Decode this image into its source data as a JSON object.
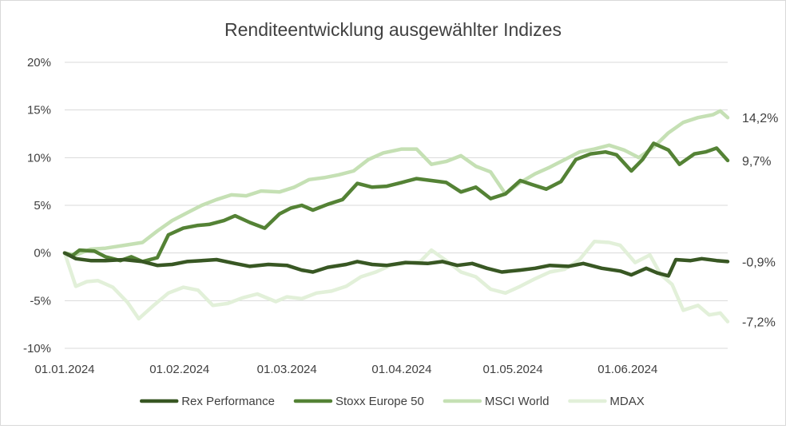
{
  "chart_data": {
    "type": "line",
    "title": "Renditeentwicklung ausgewählter Indizes",
    "xlabel": "",
    "ylabel": "",
    "x_range": [
      "2024-01-01",
      "2024-06-28"
    ],
    "x_tick_labels": [
      {
        "date": "2024-01-01",
        "label": "01.01.2024"
      },
      {
        "date": "2024-02-01",
        "label": "01.02.2024"
      },
      {
        "date": "2024-03-01",
        "label": "01.03.2024"
      },
      {
        "date": "2024-04-01",
        "label": "01.04.2024"
      },
      {
        "date": "2024-05-01",
        "label": "01.05.2024"
      },
      {
        "date": "2024-06-01",
        "label": "01.06.2024"
      }
    ],
    "y_ticks": [
      -10,
      -5,
      0,
      5,
      10,
      15,
      20
    ],
    "y_tick_labels": [
      "-10%",
      "-5%",
      "0%",
      "5%",
      "10%",
      "15%",
      "20%"
    ],
    "ylim": [
      -10,
      20
    ],
    "grid": "horizontal",
    "legend_position": "bottom",
    "series": [
      {
        "name": "Rex Performance",
        "color": "#385723",
        "end_label": "-0,9%",
        "points": [
          [
            "2024-01-01",
            0
          ],
          [
            "2024-01-04",
            -0.6
          ],
          [
            "2024-01-08",
            -0.8
          ],
          [
            "2024-01-12",
            -0.8
          ],
          [
            "2024-01-17",
            -0.7
          ],
          [
            "2024-01-22",
            -0.9
          ],
          [
            "2024-01-26",
            -1.3
          ],
          [
            "2024-01-30",
            -1.2
          ],
          [
            "2024-02-03",
            -0.9
          ],
          [
            "2024-02-07",
            -0.8
          ],
          [
            "2024-02-11",
            -0.7
          ],
          [
            "2024-02-16",
            -1.1
          ],
          [
            "2024-02-20",
            -1.4
          ],
          [
            "2024-02-25",
            -1.2
          ],
          [
            "2024-03-01",
            -1.3
          ],
          [
            "2024-03-05",
            -1.8
          ],
          [
            "2024-03-08",
            -2.0
          ],
          [
            "2024-03-12",
            -1.5
          ],
          [
            "2024-03-17",
            -1.2
          ],
          [
            "2024-03-20",
            -0.9
          ],
          [
            "2024-03-24",
            -1.2
          ],
          [
            "2024-03-28",
            -1.3
          ],
          [
            "2024-04-02",
            -1.0
          ],
          [
            "2024-04-08",
            -1.1
          ],
          [
            "2024-04-12",
            -0.9
          ],
          [
            "2024-04-16",
            -1.3
          ],
          [
            "2024-04-20",
            -1.1
          ],
          [
            "2024-04-24",
            -1.6
          ],
          [
            "2024-04-28",
            -2.0
          ],
          [
            "2024-05-03",
            -1.8
          ],
          [
            "2024-05-07",
            -1.6
          ],
          [
            "2024-05-11",
            -1.3
          ],
          [
            "2024-05-16",
            -1.4
          ],
          [
            "2024-05-20",
            -1.1
          ],
          [
            "2024-05-25",
            -1.6
          ],
          [
            "2024-05-30",
            -1.9
          ],
          [
            "2024-06-02",
            -2.3
          ],
          [
            "2024-06-06",
            -1.6
          ],
          [
            "2024-06-09",
            -2.1
          ],
          [
            "2024-06-12",
            -2.4
          ],
          [
            "2024-06-14",
            -0.7
          ],
          [
            "2024-06-18",
            -0.8
          ],
          [
            "2024-06-21",
            -0.6
          ],
          [
            "2024-06-25",
            -0.8
          ],
          [
            "2024-06-28",
            -0.9
          ]
        ]
      },
      {
        "name": "Stoxx Europe 50",
        "color": "#548235",
        "end_label": "9,7%",
        "points": [
          [
            "2024-01-01",
            0
          ],
          [
            "2024-01-03",
            -0.3
          ],
          [
            "2024-01-05",
            0.3
          ],
          [
            "2024-01-09",
            0.2
          ],
          [
            "2024-01-12",
            -0.4
          ],
          [
            "2024-01-16",
            -0.8
          ],
          [
            "2024-01-19",
            -0.4
          ],
          [
            "2024-01-22",
            -0.9
          ],
          [
            "2024-01-26",
            -0.5
          ],
          [
            "2024-01-29",
            1.9
          ],
          [
            "2024-02-02",
            2.6
          ],
          [
            "2024-02-06",
            2.9
          ],
          [
            "2024-02-09",
            3.0
          ],
          [
            "2024-02-13",
            3.4
          ],
          [
            "2024-02-16",
            3.9
          ],
          [
            "2024-02-20",
            3.2
          ],
          [
            "2024-02-24",
            2.6
          ],
          [
            "2024-02-28",
            4.1
          ],
          [
            "2024-03-02",
            4.7
          ],
          [
            "2024-03-05",
            5.0
          ],
          [
            "2024-03-08",
            4.5
          ],
          [
            "2024-03-12",
            5.1
          ],
          [
            "2024-03-16",
            5.6
          ],
          [
            "2024-03-20",
            7.3
          ],
          [
            "2024-03-24",
            6.9
          ],
          [
            "2024-03-28",
            7.0
          ],
          [
            "2024-04-01",
            7.4
          ],
          [
            "2024-04-05",
            7.8
          ],
          [
            "2024-04-09",
            7.6
          ],
          [
            "2024-04-13",
            7.4
          ],
          [
            "2024-04-17",
            6.4
          ],
          [
            "2024-04-21",
            6.9
          ],
          [
            "2024-04-25",
            5.7
          ],
          [
            "2024-04-29",
            6.2
          ],
          [
            "2024-05-03",
            7.6
          ],
          [
            "2024-05-06",
            7.2
          ],
          [
            "2024-05-10",
            6.7
          ],
          [
            "2024-05-14",
            7.5
          ],
          [
            "2024-05-18",
            9.8
          ],
          [
            "2024-05-22",
            10.4
          ],
          [
            "2024-05-26",
            10.6
          ],
          [
            "2024-05-29",
            10.3
          ],
          [
            "2024-06-02",
            8.6
          ],
          [
            "2024-06-05",
            9.8
          ],
          [
            "2024-06-08",
            11.5
          ],
          [
            "2024-06-12",
            10.8
          ],
          [
            "2024-06-15",
            9.3
          ],
          [
            "2024-06-19",
            10.4
          ],
          [
            "2024-06-22",
            10.6
          ],
          [
            "2024-06-25",
            11.0
          ],
          [
            "2024-06-28",
            9.7
          ]
        ]
      },
      {
        "name": "MSCI World",
        "color": "#c5e0b4",
        "end_label": "14,2%",
        "points": [
          [
            "2024-01-01",
            0
          ],
          [
            "2024-01-04",
            -0.2
          ],
          [
            "2024-01-08",
            0.4
          ],
          [
            "2024-01-12",
            0.5
          ],
          [
            "2024-01-17",
            0.8
          ],
          [
            "2024-01-22",
            1.1
          ],
          [
            "2024-01-26",
            2.3
          ],
          [
            "2024-01-30",
            3.4
          ],
          [
            "2024-02-03",
            4.2
          ],
          [
            "2024-02-07",
            5.0
          ],
          [
            "2024-02-11",
            5.6
          ],
          [
            "2024-02-15",
            6.1
          ],
          [
            "2024-02-19",
            6.0
          ],
          [
            "2024-02-23",
            6.5
          ],
          [
            "2024-02-28",
            6.4
          ],
          [
            "2024-03-03",
            6.9
          ],
          [
            "2024-03-07",
            7.7
          ],
          [
            "2024-03-11",
            7.9
          ],
          [
            "2024-03-15",
            8.2
          ],
          [
            "2024-03-19",
            8.6
          ],
          [
            "2024-03-23",
            9.8
          ],
          [
            "2024-03-27",
            10.5
          ],
          [
            "2024-04-01",
            10.9
          ],
          [
            "2024-04-05",
            10.9
          ],
          [
            "2024-04-09",
            9.3
          ],
          [
            "2024-04-13",
            9.6
          ],
          [
            "2024-04-17",
            10.2
          ],
          [
            "2024-04-21",
            9.1
          ],
          [
            "2024-04-25",
            8.5
          ],
          [
            "2024-04-29",
            6.2
          ],
          [
            "2024-05-03",
            7.4
          ],
          [
            "2024-05-07",
            8.3
          ],
          [
            "2024-05-11",
            9.0
          ],
          [
            "2024-05-15",
            9.8
          ],
          [
            "2024-05-19",
            10.6
          ],
          [
            "2024-05-23",
            10.9
          ],
          [
            "2024-05-27",
            11.3
          ],
          [
            "2024-05-31",
            10.8
          ],
          [
            "2024-06-04",
            10.0
          ],
          [
            "2024-06-08",
            11.1
          ],
          [
            "2024-06-12",
            12.6
          ],
          [
            "2024-06-16",
            13.7
          ],
          [
            "2024-06-20",
            14.2
          ],
          [
            "2024-06-24",
            14.5
          ],
          [
            "2024-06-26",
            14.9
          ],
          [
            "2024-06-28",
            14.2
          ]
        ]
      },
      {
        "name": "MDAX",
        "color": "#e2f0d9",
        "end_label": "-7,2%",
        "points": [
          [
            "2024-01-01",
            0
          ],
          [
            "2024-01-04",
            -3.5
          ],
          [
            "2024-01-07",
            -3.0
          ],
          [
            "2024-01-10",
            -2.9
          ],
          [
            "2024-01-14",
            -3.6
          ],
          [
            "2024-01-18",
            -5.2
          ],
          [
            "2024-01-21",
            -6.9
          ],
          [
            "2024-01-25",
            -5.5
          ],
          [
            "2024-01-29",
            -4.2
          ],
          [
            "2024-02-02",
            -3.6
          ],
          [
            "2024-02-06",
            -3.9
          ],
          [
            "2024-02-10",
            -5.5
          ],
          [
            "2024-02-14",
            -5.3
          ],
          [
            "2024-02-18",
            -4.7
          ],
          [
            "2024-02-22",
            -4.3
          ],
          [
            "2024-02-27",
            -5.1
          ],
          [
            "2024-03-01",
            -4.6
          ],
          [
            "2024-03-05",
            -4.8
          ],
          [
            "2024-03-09",
            -4.2
          ],
          [
            "2024-03-13",
            -4.0
          ],
          [
            "2024-03-17",
            -3.5
          ],
          [
            "2024-03-21",
            -2.5
          ],
          [
            "2024-03-25",
            -2.0
          ],
          [
            "2024-03-29",
            -1.3
          ],
          [
            "2024-04-02",
            -1.1
          ],
          [
            "2024-04-06",
            -0.9
          ],
          [
            "2024-04-09",
            0.3
          ],
          [
            "2024-04-13",
            -0.8
          ],
          [
            "2024-04-17",
            -2.0
          ],
          [
            "2024-04-21",
            -2.5
          ],
          [
            "2024-04-25",
            -3.8
          ],
          [
            "2024-04-29",
            -4.2
          ],
          [
            "2024-05-03",
            -3.5
          ],
          [
            "2024-05-07",
            -2.7
          ],
          [
            "2024-05-11",
            -2.0
          ],
          [
            "2024-05-15",
            -1.7
          ],
          [
            "2024-05-19",
            -0.7
          ],
          [
            "2024-05-23",
            1.2
          ],
          [
            "2024-05-27",
            1.1
          ],
          [
            "2024-05-30",
            0.8
          ],
          [
            "2024-06-03",
            -1.0
          ],
          [
            "2024-06-07",
            -0.2
          ],
          [
            "2024-06-10",
            -2.3
          ],
          [
            "2024-06-13",
            -3.3
          ],
          [
            "2024-06-16",
            -6.0
          ],
          [
            "2024-06-20",
            -5.5
          ],
          [
            "2024-06-23",
            -6.5
          ],
          [
            "2024-06-26",
            -6.3
          ],
          [
            "2024-06-28",
            -7.2
          ]
        ]
      }
    ]
  }
}
